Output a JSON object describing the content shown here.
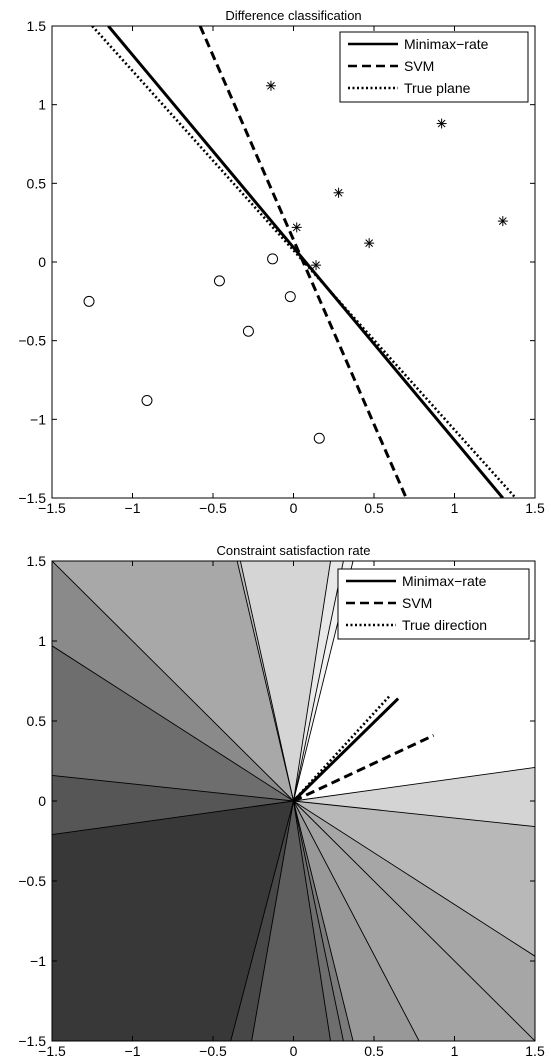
{
  "chart_data": [
    {
      "type": "line",
      "title": "Difference classification",
      "xlabel": "",
      "ylabel": "",
      "xlim": [
        -1.5,
        1.5
      ],
      "ylim": [
        -1.5,
        1.5
      ],
      "xticks": [
        -1.5,
        -1,
        -0.5,
        0,
        0.5,
        1,
        1.5
      ],
      "xtick_labels": [
        "−1.5",
        "−1",
        "−0.5",
        "0",
        "0.5",
        "1",
        "1.5"
      ],
      "yticks": [
        -1.5,
        -1,
        -0.5,
        0,
        0.5,
        1,
        1.5
      ],
      "ytick_labels": [
        "−1.5",
        "−1",
        "−0.5",
        "0",
        "0.5",
        "1",
        "1.5"
      ],
      "grid": false,
      "legend_position": "top-right",
      "series": [
        {
          "name": "Minimax−rate",
          "style": "solid",
          "points": [
            [
              -1.15,
              1.5
            ],
            [
              1.3,
              -1.5
            ]
          ]
        },
        {
          "name": "SVM",
          "style": "dashed",
          "points": [
            [
              -0.58,
              1.5
            ],
            [
              0.7,
              -1.5
            ]
          ]
        },
        {
          "name": "True plane",
          "style": "dotted",
          "points": [
            [
              -1.25,
              1.5
            ],
            [
              1.38,
              -1.5
            ]
          ]
        }
      ],
      "scatter": [
        {
          "marker": "star",
          "points": [
            [
              -0.14,
              1.12
            ],
            [
              0.92,
              0.88
            ],
            [
              0.28,
              0.44
            ],
            [
              0.02,
              0.22
            ],
            [
              0.47,
              0.12
            ],
            [
              1.3,
              0.26
            ],
            [
              0.14,
              -0.02
            ]
          ]
        },
        {
          "marker": "circle",
          "points": [
            [
              -1.27,
              -0.25
            ],
            [
              -0.46,
              -0.12
            ],
            [
              -0.13,
              0.02
            ],
            [
              -0.02,
              -0.22
            ],
            [
              -0.28,
              -0.44
            ],
            [
              -0.91,
              -0.88
            ],
            [
              0.16,
              -1.12
            ]
          ]
        }
      ]
    },
    {
      "type": "area",
      "title": "Constraint satisfaction rate",
      "xlabel": "",
      "ylabel": "",
      "xlim": [
        -1.5,
        1.5
      ],
      "ylim": [
        -1.5,
        1.5
      ],
      "xticks": [
        -1.5,
        -1,
        -0.5,
        0,
        0.5,
        1,
        1.5
      ],
      "xtick_labels": [
        "−1.5",
        "−1",
        "−0.5",
        "0",
        "0.5",
        "1",
        "1.5"
      ],
      "yticks": [
        -1.5,
        -1,
        -0.5,
        0,
        0.5,
        1,
        1.5
      ],
      "ytick_labels": [
        "−1.5",
        "−1",
        "−0.5",
        "0",
        "0.5",
        "1",
        "1.5"
      ],
      "grid": false,
      "legend_position": "top-right",
      "boundary_points": [
        [
          1.5,
          0.21
        ],
        [
          1.5,
          -0.16
        ],
        [
          1.5,
          -0.97
        ],
        [
          1.5,
          -1.5
        ],
        [
          0.78,
          -1.5
        ],
        [
          0.37,
          -1.5
        ],
        [
          0.31,
          -1.5
        ],
        [
          0.23,
          -1.5
        ],
        [
          -0.26,
          -1.5
        ],
        [
          -0.39,
          -1.5
        ],
        [
          -1.5,
          -0.21
        ],
        [
          -1.5,
          0.16
        ],
        [
          -1.5,
          0.97
        ],
        [
          -1.5,
          1.5
        ],
        [
          -0.35,
          1.5
        ],
        [
          -0.33,
          1.5
        ],
        [
          0.23,
          1.5
        ],
        [
          0.31,
          1.5
        ],
        [
          0.37,
          1.5
        ]
      ],
      "sectors": [
        {
          "from": 0,
          "to": 1,
          "gray": "#d4d4d4"
        },
        {
          "from": 1,
          "to": 2,
          "gray": "#b8b8b8"
        },
        {
          "from": 2,
          "to": 3,
          "gray": "#a6a6a6"
        },
        {
          "from": 3,
          "to": 4,
          "gray": "#a3a3a3"
        },
        {
          "from": 4,
          "to": 5,
          "gray": "#989898"
        },
        {
          "from": 5,
          "to": 6,
          "gray": "#7a7a7a"
        },
        {
          "from": 6,
          "to": 7,
          "gray": "#6e6e6e"
        },
        {
          "from": 7,
          "to": 8,
          "gray": "#5e5e5e"
        },
        {
          "from": 8,
          "to": 9,
          "gray": "#474747"
        },
        {
          "from": 9,
          "to": 10,
          "gray": "#383838"
        },
        {
          "from": 10,
          "to": 11,
          "gray": "#565656"
        },
        {
          "from": 11,
          "to": 12,
          "gray": "#6e6e6e"
        },
        {
          "from": 12,
          "to": 13,
          "gray": "#8a8a8a"
        },
        {
          "from": 13,
          "to": 14,
          "gray": "#a8a8a8"
        },
        {
          "from": 14,
          "to": 15,
          "gray": "#bdbdbd"
        },
        {
          "from": 15,
          "to": 16,
          "gray": "#d5d5d5"
        },
        {
          "from": 16,
          "to": 17,
          "gray": "#e8e8e8"
        },
        {
          "from": 17,
          "to": 18,
          "gray": "#f2f2f2"
        },
        {
          "from": 18,
          "to": 0,
          "gray": "#ffffff"
        }
      ],
      "series": [
        {
          "name": "Minimax−rate",
          "style": "solid",
          "points": [
            [
              0,
              0
            ],
            [
              0.65,
              0.64
            ]
          ]
        },
        {
          "name": "SVM",
          "style": "dashed",
          "points": [
            [
              0,
              0
            ],
            [
              0.87,
              0.41
            ]
          ]
        },
        {
          "name": "True direction",
          "style": "dotted",
          "points": [
            [
              0,
              0
            ],
            [
              0.6,
              0.66
            ]
          ]
        }
      ]
    }
  ]
}
